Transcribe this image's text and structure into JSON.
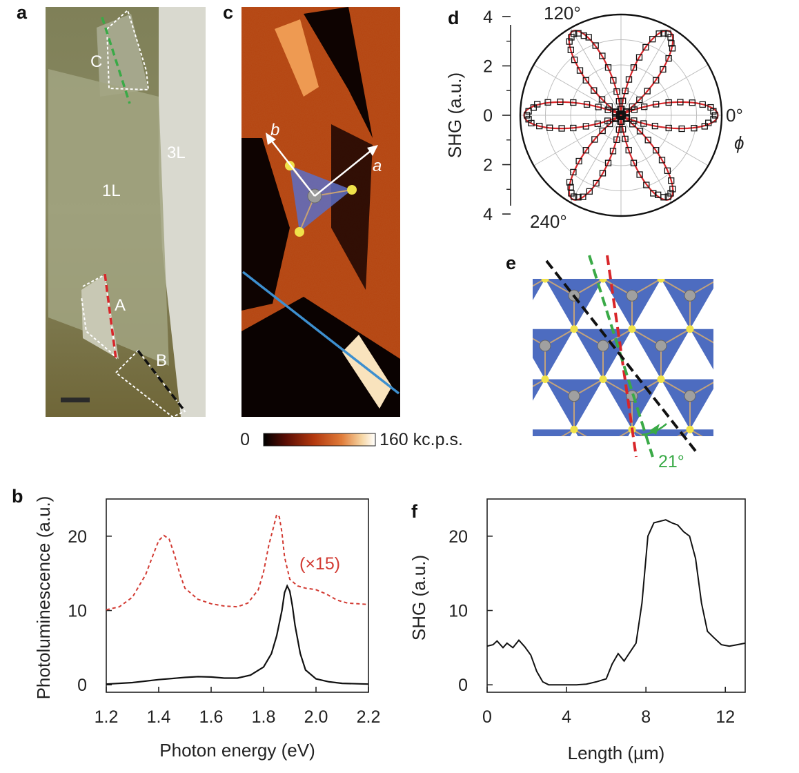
{
  "panels": {
    "a": "a",
    "b": "b",
    "c": "c",
    "d": "d",
    "e": "e",
    "f": "f"
  },
  "micrograph": {
    "labels": {
      "c": "C",
      "one_layer": "1L",
      "three_layer": "3L",
      "a": "A",
      "b": "B"
    }
  },
  "map": {
    "axis_labels": {
      "b": "b",
      "a": "a"
    },
    "colorbar": {
      "min_label": "0",
      "max_label": "160 kc.p.s.",
      "colors": [
        "#000000",
        "#5a0d04",
        "#b3380e",
        "#e07c3a",
        "#f6d6a4",
        "#ffffff"
      ]
    }
  },
  "lattice": {
    "angle_label": "21°",
    "colors": {
      "triangle": "#4d6cc0",
      "red_line": "#d8262a",
      "green_line": "#3aaa47",
      "black_line": "#111111"
    }
  },
  "chart_data": [
    {
      "panel": "b",
      "type": "line",
      "title": "",
      "xlabel": "Photon energy (eV)",
      "ylabel": "Photoluminescence (a.u.)",
      "xlim": [
        1.2,
        2.2
      ],
      "ylim": [
        -1,
        25
      ],
      "xticks": [
        1.2,
        1.4,
        1.6,
        1.8,
        2.0,
        2.2
      ],
      "xtick_labels": [
        "1.2",
        "1.4",
        "1.6",
        "1.8",
        "2.0",
        "2.2"
      ],
      "yticks": [
        0,
        10,
        20
      ],
      "ytick_labels": [
        "0",
        "10",
        "20"
      ],
      "grid": false,
      "series": [
        {
          "name": "(×15)",
          "color": "#d23a32",
          "style": "dashed",
          "x": [
            1.2,
            1.25,
            1.3,
            1.35,
            1.38,
            1.4,
            1.42,
            1.44,
            1.46,
            1.48,
            1.5,
            1.55,
            1.6,
            1.65,
            1.7,
            1.74,
            1.78,
            1.8,
            1.82,
            1.84,
            1.85,
            1.86,
            1.87,
            1.88,
            1.9,
            1.93,
            1.96,
            2.0,
            2.04,
            2.08,
            2.12,
            2.16,
            2.2
          ],
          "y": [
            10.1,
            10.5,
            11.8,
            14.8,
            17.6,
            19.4,
            20.1,
            19.6,
            17.5,
            15.0,
            13.0,
            11.5,
            10.9,
            10.6,
            10.5,
            11.0,
            12.8,
            15.2,
            18.8,
            21.5,
            22.9,
            22.6,
            20.5,
            17.2,
            14.2,
            13.3,
            13.0,
            12.8,
            12.2,
            11.4,
            11.0,
            10.9,
            10.8
          ]
        },
        {
          "name": "",
          "color": "#111111",
          "style": "solid",
          "x": [
            1.2,
            1.3,
            1.4,
            1.5,
            1.55,
            1.6,
            1.65,
            1.7,
            1.75,
            1.8,
            1.83,
            1.85,
            1.87,
            1.88,
            1.89,
            1.9,
            1.91,
            1.92,
            1.94,
            1.96,
            2.0,
            2.05,
            2.1,
            2.2
          ],
          "y": [
            0.1,
            0.3,
            0.7,
            1.0,
            1.1,
            1.05,
            0.9,
            0.9,
            1.3,
            2.4,
            4.2,
            6.6,
            10.0,
            12.4,
            13.3,
            12.6,
            10.6,
            8.0,
            4.2,
            2.0,
            0.8,
            0.4,
            0.2,
            0.1
          ]
        }
      ]
    },
    {
      "panel": "d",
      "type": "polar",
      "title": "",
      "ylabel": "SHG (a.u.)",
      "angle_label": "ϕ",
      "rlim": [
        0,
        4
      ],
      "yticks": [
        4,
        2,
        0,
        2,
        4
      ],
      "ytick_labels": [
        "4",
        "2",
        "0",
        "2",
        "4"
      ],
      "angle_ticks": [
        0,
        120,
        240
      ],
      "angle_tick_labels": [
        "0°",
        "120°",
        "240°"
      ],
      "grid": true,
      "series": [
        {
          "name": "",
          "marker": "square",
          "color": "#111111",
          "phi_deg": [
            0,
            10,
            20,
            30,
            40,
            50,
            60,
            70,
            80,
            90,
            100,
            110,
            120,
            130,
            140,
            150,
            160,
            170,
            180,
            190,
            200,
            210,
            220,
            230,
            240,
            250,
            260,
            270,
            280,
            290,
            300,
            310,
            320,
            330,
            340,
            350
          ],
          "r": [
            3.9,
            3.0,
            1.1,
            0.0,
            1.1,
            3.0,
            3.8,
            3.0,
            1.1,
            0.0,
            1.1,
            3.0,
            3.9,
            3.0,
            1.1,
            0.0,
            1.1,
            3.0,
            3.8,
            3.0,
            1.1,
            0.0,
            1.1,
            3.0,
            3.9,
            3.0,
            1.1,
            0.0,
            1.1,
            3.0,
            3.8,
            3.0,
            1.1,
            0.0,
            1.1,
            3.0
          ]
        },
        {
          "name": "",
          "style": "line",
          "color": "#d8262a",
          "fit": "r = 3.85·cos²(3ϕ)"
        }
      ]
    },
    {
      "panel": "f",
      "type": "line",
      "title": "",
      "xlabel": "Length (µm)",
      "ylabel": "SHG (a.u.)",
      "xlim": [
        0,
        13
      ],
      "ylim": [
        -1,
        25
      ],
      "xticks": [
        0,
        4,
        8,
        12
      ],
      "xtick_labels": [
        "0",
        "4",
        "8",
        "12"
      ],
      "yticks": [
        0,
        10,
        20
      ],
      "ytick_labels": [
        "0",
        "10",
        "20"
      ],
      "grid": false,
      "series": [
        {
          "name": "",
          "color": "#111111",
          "style": "solid",
          "x": [
            0,
            0.3,
            0.5,
            0.8,
            1.0,
            1.3,
            1.6,
            1.9,
            2.2,
            2.5,
            2.8,
            3.1,
            3.5,
            4.0,
            4.5,
            5.0,
            5.5,
            6.0,
            6.3,
            6.6,
            6.9,
            7.2,
            7.5,
            7.8,
            8.1,
            8.4,
            8.7,
            9.0,
            9.3,
            9.6,
            9.9,
            10.2,
            10.5,
            10.8,
            11.1,
            11.4,
            11.8,
            12.2,
            12.6,
            13.0
          ],
          "y": [
            5.2,
            5.4,
            5.9,
            5.0,
            5.6,
            5.0,
            6.0,
            5.1,
            4.0,
            1.8,
            0.4,
            0.0,
            0.0,
            0.0,
            0.0,
            0.1,
            0.4,
            0.8,
            2.8,
            4.2,
            3.2,
            4.4,
            5.6,
            11.0,
            20.0,
            21.8,
            22.0,
            22.2,
            21.8,
            21.5,
            20.6,
            20.0,
            17.0,
            11.0,
            7.2,
            6.4,
            5.4,
            5.2,
            5.4,
            5.6
          ]
        }
      ]
    }
  ]
}
